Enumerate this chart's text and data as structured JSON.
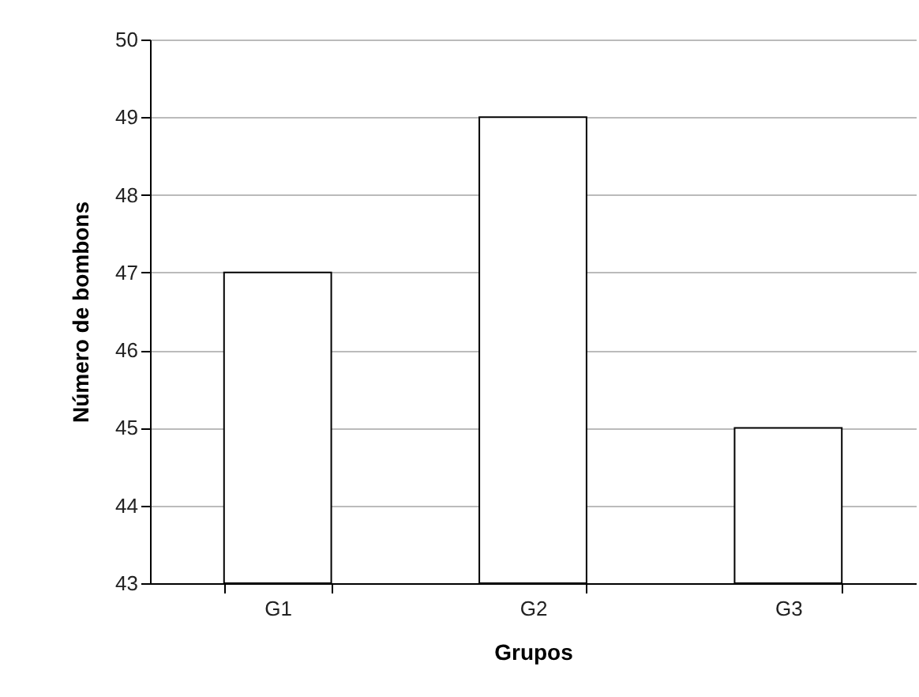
{
  "chart_data": {
    "type": "bar",
    "xlabel": "Grupos",
    "ylabel": "Número de bombons",
    "categories": [
      "G1",
      "G2",
      "G3"
    ],
    "values": [
      47,
      49,
      45
    ],
    "color": "#ffffff",
    "ylim": [
      43,
      50
    ],
    "yticks": [
      43,
      44,
      45,
      46,
      47,
      48,
      49,
      50
    ],
    "grid": "y"
  }
}
